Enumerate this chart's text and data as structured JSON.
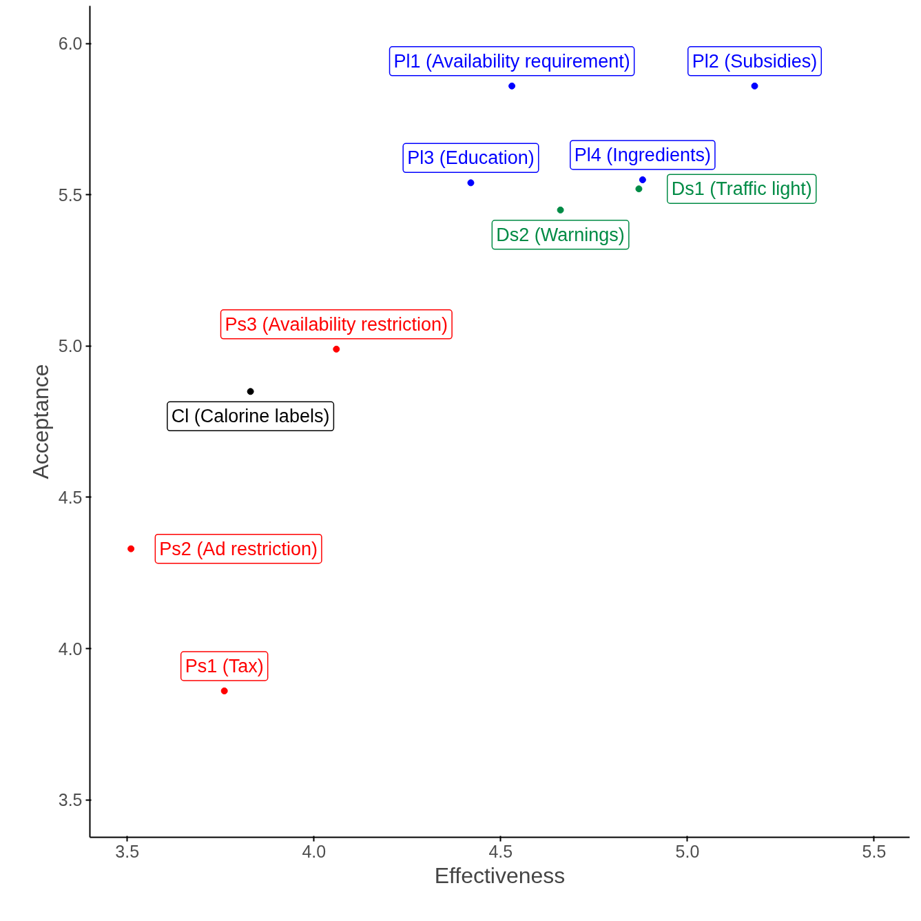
{
  "chart_data": {
    "type": "scatter",
    "xlabel": "Effectiveness",
    "ylabel": "Acceptance",
    "xlim": [
      3.4,
      5.595
    ],
    "ylim": [
      3.376,
      6.125
    ],
    "xticks": [
      3.5,
      {
        "value": 4,
        "label": "4.0"
      },
      4.5,
      {
        "value": 5,
        "label": "5.0"
      },
      5.5
    ],
    "yticks": [
      3.5,
      {
        "value": 4,
        "label": "4.0"
      },
      4.5,
      {
        "value": 5,
        "label": "5.0"
      },
      5.5,
      {
        "value": 6,
        "label": "6.0"
      }
    ],
    "grid": false,
    "legend": false,
    "marker": "circle",
    "series": [
      {
        "name": "Pl1 (Availability requirement)",
        "color": "#0000ff",
        "x": [
          4.53
        ],
        "values": [
          5.86
        ]
      },
      {
        "name": "Pl2 (Subsidies)",
        "color": "#0000ff",
        "x": [
          5.18
        ],
        "values": [
          5.86
        ]
      },
      {
        "name": "Pl3 (Education)",
        "color": "#0000ff",
        "x": [
          4.42
        ],
        "values": [
          5.54
        ]
      },
      {
        "name": "Pl4 (Ingredients)",
        "color": "#0000ff",
        "x": [
          4.88
        ],
        "values": [
          5.55
        ]
      },
      {
        "name": "Ds1 (Traffic light)",
        "color": "#008b45",
        "x": [
          4.87
        ],
        "values": [
          5.52
        ]
      },
      {
        "name": "Ds2 (Warnings)",
        "color": "#008b45",
        "x": [
          4.66
        ],
        "values": [
          5.45
        ]
      },
      {
        "name": "Ps3 (Availability restriction)",
        "color": "#ff0000",
        "x": [
          4.06
        ],
        "values": [
          4.99
        ]
      },
      {
        "name": "Cl (Calorine labels)",
        "color": "#000000",
        "x": [
          3.83
        ],
        "values": [
          4.85
        ]
      },
      {
        "name": "Ps2 (Ad restriction)",
        "color": "#ff0000",
        "x": [
          3.51
        ],
        "values": [
          4.33
        ]
      },
      {
        "name": "Ps1 (Tax)",
        "color": "#ff0000",
        "x": [
          3.76
        ],
        "values": [
          3.86
        ]
      }
    ]
  }
}
